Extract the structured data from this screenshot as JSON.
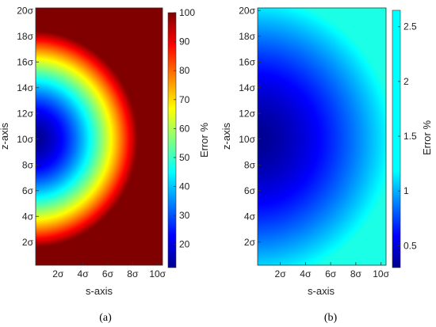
{
  "chart_data": [
    {
      "type": "heatmap",
      "caption": "(a)",
      "xlabel": "s-axis",
      "ylabel": "z-axis",
      "x_ticks": [
        "2σ",
        "4σ",
        "6σ",
        "8σ",
        "10σ"
      ],
      "x_tick_values": [
        2,
        4,
        6,
        8,
        10
      ],
      "y_ticks": [
        "2σ",
        "4σ",
        "6σ",
        "8σ",
        "10σ",
        "12σ",
        "14σ",
        "16σ",
        "18σ",
        "20σ"
      ],
      "y_tick_values": [
        2,
        4,
        6,
        8,
        10,
        12,
        14,
        16,
        18,
        20
      ],
      "xlim": [
        0.2,
        10.4
      ],
      "ylim": [
        0.2,
        20.2
      ],
      "colorbar": {
        "label": "Error %",
        "ticks": [
          "20",
          "30",
          "40",
          "50",
          "60",
          "70",
          "80",
          "90",
          "100"
        ],
        "tick_values": [
          20,
          30,
          40,
          50,
          60,
          70,
          80,
          90,
          100
        ],
        "range": [
          12,
          100
        ]
      },
      "field": {
        "center_s": 0,
        "center_z": 10,
        "min": 12,
        "max": 100,
        "shape": "radial",
        "scale": 8.4,
        "exponent": 1.6
      }
    },
    {
      "type": "heatmap",
      "caption": "(b)",
      "xlabel": "s-axis",
      "ylabel": "z-axis",
      "x_ticks": [
        "2σ",
        "4σ",
        "6σ",
        "8σ",
        "10σ"
      ],
      "x_tick_values": [
        2,
        4,
        6,
        8,
        10
      ],
      "y_ticks": [
        "2σ",
        "4σ",
        "6σ",
        "8σ",
        "10σ",
        "12σ",
        "14σ",
        "16σ",
        "18σ",
        "20σ"
      ],
      "y_tick_values": [
        2,
        4,
        6,
        8,
        10,
        12,
        14,
        16,
        18,
        20
      ],
      "xlim": [
        0.2,
        10.4
      ],
      "ylim": [
        0.2,
        20.2
      ],
      "colorbar": {
        "label": "Error %",
        "ticks": [
          "0.5",
          "1",
          "1.5",
          "2",
          "2.5"
        ],
        "tick_values": [
          0.5,
          1,
          1.5,
          2,
          2.5
        ],
        "range": [
          0.3,
          2.65
        ]
      },
      "field": {
        "center_s": 0,
        "center_z": 10,
        "min": 0.3,
        "max": 2.65,
        "shape": "radial",
        "scale": 11,
        "exponent": 1.5
      }
    }
  ]
}
